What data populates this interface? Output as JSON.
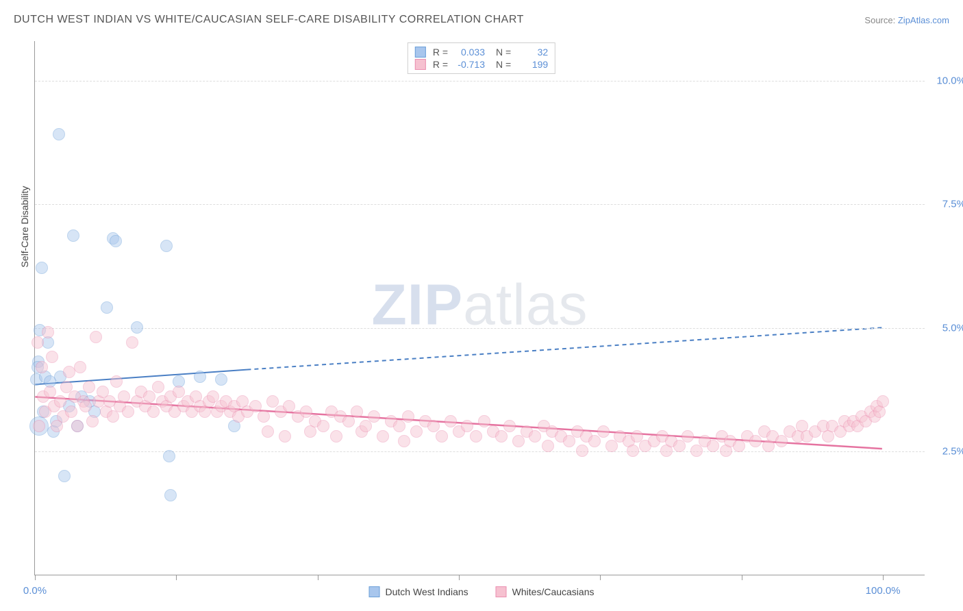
{
  "title": "DUTCH WEST INDIAN VS WHITE/CAUCASIAN SELF-CARE DISABILITY CORRELATION CHART",
  "source_label": "Source:",
  "source_link_text": "ZipAtlas.com",
  "y_axis_title": "Self-Care Disability",
  "watermark": {
    "bold": "ZIP",
    "light": "atlas"
  },
  "chart": {
    "type": "scatter",
    "background_color": "#ffffff",
    "grid_color": "#dddddd",
    "axis_color": "#999999",
    "xlim": [
      0,
      105
    ],
    "ylim": [
      0,
      10.8
    ],
    "x_ticks": [
      0,
      16.67,
      33.33,
      50,
      66.67,
      83.33,
      100
    ],
    "x_tick_labels": {
      "0": "0.0%",
      "100": "100.0%"
    },
    "y_gridlines": [
      2.5,
      5.0,
      7.5,
      10.0
    ],
    "y_tick_labels": [
      "2.5%",
      "5.0%",
      "7.5%",
      "10.0%"
    ],
    "tick_label_color": "#5b8fd6",
    "tick_label_fontsize": 15,
    "point_radius": 9,
    "point_opacity": 0.45,
    "series": [
      {
        "key": "dutch_west_indians",
        "label": "Dutch West Indians",
        "color_fill": "#a8c6ed",
        "color_stroke": "#6b9fd8",
        "R": "0.033",
        "N": "32",
        "trend": {
          "solid": {
            "x1": 0,
            "y1": 3.85,
            "x2": 25,
            "y2": 4.15
          },
          "dashed": {
            "x1": 25,
            "y1": 4.15,
            "x2": 100,
            "y2": 5.0
          },
          "color": "#4a7fc4",
          "width": 2
        },
        "points": [
          {
            "x": 0.2,
            "y": 3.95
          },
          {
            "x": 0.4,
            "y": 4.3
          },
          {
            "x": 0.5,
            "y": 3.0,
            "r": 14
          },
          {
            "x": 0.8,
            "y": 6.2
          },
          {
            "x": 1.0,
            "y": 3.3
          },
          {
            "x": 1.2,
            "y": 4.0
          },
          {
            "x": 1.5,
            "y": 4.7
          },
          {
            "x": 1.8,
            "y": 3.9
          },
          {
            "x": 2.2,
            "y": 2.9
          },
          {
            "x": 2.5,
            "y": 3.1
          },
          {
            "x": 2.8,
            "y": 8.9
          },
          {
            "x": 3.0,
            "y": 4.0
          },
          {
            "x": 3.5,
            "y": 2.0
          },
          {
            "x": 4.0,
            "y": 3.4
          },
          {
            "x": 4.5,
            "y": 6.85
          },
          {
            "x": 5.0,
            "y": 3.0
          },
          {
            "x": 5.5,
            "y": 3.6
          },
          {
            "x": 6.5,
            "y": 3.5
          },
          {
            "x": 7.0,
            "y": 3.3
          },
          {
            "x": 8.5,
            "y": 5.4
          },
          {
            "x": 9.2,
            "y": 6.8
          },
          {
            "x": 9.5,
            "y": 6.75
          },
          {
            "x": 12.0,
            "y": 5.0
          },
          {
            "x": 15.5,
            "y": 6.65
          },
          {
            "x": 15.8,
            "y": 2.4
          },
          {
            "x": 16.0,
            "y": 1.6
          },
          {
            "x": 17.0,
            "y": 3.9
          },
          {
            "x": 19.5,
            "y": 4.0
          },
          {
            "x": 22.0,
            "y": 3.95
          },
          {
            "x": 23.5,
            "y": 3.0
          },
          {
            "x": 0.6,
            "y": 4.95
          },
          {
            "x": 0.3,
            "y": 4.2
          }
        ]
      },
      {
        "key": "whites_caucasians",
        "label": "Whites/Caucasians",
        "color_fill": "#f6c1d0",
        "color_stroke": "#eb8fb0",
        "R": "-0.713",
        "N": "199",
        "trend": {
          "solid": {
            "x1": 0,
            "y1": 3.6,
            "x2": 100,
            "y2": 2.55
          },
          "color": "#e573a0",
          "width": 2.5
        },
        "points": [
          {
            "x": 0.3,
            "y": 4.7
          },
          {
            "x": 0.5,
            "y": 3.0
          },
          {
            "x": 0.8,
            "y": 4.2
          },
          {
            "x": 1.0,
            "y": 3.6
          },
          {
            "x": 1.2,
            "y": 3.3
          },
          {
            "x": 1.5,
            "y": 4.9
          },
          {
            "x": 1.8,
            "y": 3.7
          },
          {
            "x": 2.0,
            "y": 4.4
          },
          {
            "x": 2.3,
            "y": 3.4
          },
          {
            "x": 2.6,
            "y": 3.0
          },
          {
            "x": 3.0,
            "y": 3.5
          },
          {
            "x": 3.3,
            "y": 3.2
          },
          {
            "x": 3.7,
            "y": 3.8
          },
          {
            "x": 4.0,
            "y": 4.1
          },
          {
            "x": 4.3,
            "y": 3.3
          },
          {
            "x": 4.7,
            "y": 3.6
          },
          {
            "x": 5.0,
            "y": 3.0
          },
          {
            "x": 5.3,
            "y": 4.2
          },
          {
            "x": 5.7,
            "y": 3.5
          },
          {
            "x": 6.0,
            "y": 3.4
          },
          {
            "x": 6.4,
            "y": 3.8
          },
          {
            "x": 6.8,
            "y": 3.1
          },
          {
            "x": 7.2,
            "y": 4.8
          },
          {
            "x": 7.5,
            "y": 3.5
          },
          {
            "x": 8.0,
            "y": 3.7
          },
          {
            "x": 8.4,
            "y": 3.3
          },
          {
            "x": 8.8,
            "y": 3.5
          },
          {
            "x": 9.2,
            "y": 3.2
          },
          {
            "x": 9.6,
            "y": 3.9
          },
          {
            "x": 10.0,
            "y": 3.4
          },
          {
            "x": 10.5,
            "y": 3.6
          },
          {
            "x": 11.0,
            "y": 3.3
          },
          {
            "x": 11.5,
            "y": 4.7
          },
          {
            "x": 12.0,
            "y": 3.5
          },
          {
            "x": 12.5,
            "y": 3.7
          },
          {
            "x": 13.0,
            "y": 3.4
          },
          {
            "x": 13.5,
            "y": 3.6
          },
          {
            "x": 14.0,
            "y": 3.3
          },
          {
            "x": 14.5,
            "y": 3.8
          },
          {
            "x": 15.0,
            "y": 3.5
          },
          {
            "x": 15.5,
            "y": 3.4
          },
          {
            "x": 16.0,
            "y": 3.6
          },
          {
            "x": 16.5,
            "y": 3.3
          },
          {
            "x": 17.0,
            "y": 3.7
          },
          {
            "x": 17.5,
            "y": 3.4
          },
          {
            "x": 18.0,
            "y": 3.5
          },
          {
            "x": 18.5,
            "y": 3.3
          },
          {
            "x": 19.0,
            "y": 3.6
          },
          {
            "x": 19.5,
            "y": 3.4
          },
          {
            "x": 20.0,
            "y": 3.3
          },
          {
            "x": 20.5,
            "y": 3.5
          },
          {
            "x": 21.0,
            "y": 3.6
          },
          {
            "x": 21.5,
            "y": 3.3
          },
          {
            "x": 22.0,
            "y": 3.4
          },
          {
            "x": 22.5,
            "y": 3.5
          },
          {
            "x": 23.0,
            "y": 3.3
          },
          {
            "x": 23.5,
            "y": 3.4
          },
          {
            "x": 24.0,
            "y": 3.2
          },
          {
            "x": 24.5,
            "y": 3.5
          },
          {
            "x": 25.0,
            "y": 3.3
          },
          {
            "x": 26.0,
            "y": 3.4
          },
          {
            "x": 27.0,
            "y": 3.2
          },
          {
            "x": 27.5,
            "y": 2.9
          },
          {
            "x": 28.0,
            "y": 3.5
          },
          {
            "x": 29.0,
            "y": 3.3
          },
          {
            "x": 29.5,
            "y": 2.8
          },
          {
            "x": 30.0,
            "y": 3.4
          },
          {
            "x": 31.0,
            "y": 3.2
          },
          {
            "x": 32.0,
            "y": 3.3
          },
          {
            "x": 32.5,
            "y": 2.9
          },
          {
            "x": 33.0,
            "y": 3.1
          },
          {
            "x": 34.0,
            "y": 3.0
          },
          {
            "x": 35.0,
            "y": 3.3
          },
          {
            "x": 35.5,
            "y": 2.8
          },
          {
            "x": 36.0,
            "y": 3.2
          },
          {
            "x": 37.0,
            "y": 3.1
          },
          {
            "x": 38.0,
            "y": 3.3
          },
          {
            "x": 38.5,
            "y": 2.9
          },
          {
            "x": 39.0,
            "y": 3.0
          },
          {
            "x": 40.0,
            "y": 3.2
          },
          {
            "x": 41.0,
            "y": 2.8
          },
          {
            "x": 42.0,
            "y": 3.1
          },
          {
            "x": 43.0,
            "y": 3.0
          },
          {
            "x": 43.5,
            "y": 2.7
          },
          {
            "x": 44.0,
            "y": 3.2
          },
          {
            "x": 45.0,
            "y": 2.9
          },
          {
            "x": 46.0,
            "y": 3.1
          },
          {
            "x": 47.0,
            "y": 3.0
          },
          {
            "x": 48.0,
            "y": 2.8
          },
          {
            "x": 49.0,
            "y": 3.1
          },
          {
            "x": 50.0,
            "y": 2.9
          },
          {
            "x": 51.0,
            "y": 3.0
          },
          {
            "x": 52.0,
            "y": 2.8
          },
          {
            "x": 53.0,
            "y": 3.1
          },
          {
            "x": 54.0,
            "y": 2.9
          },
          {
            "x": 55.0,
            "y": 2.8
          },
          {
            "x": 56.0,
            "y": 3.0
          },
          {
            "x": 57.0,
            "y": 2.7
          },
          {
            "x": 58.0,
            "y": 2.9
          },
          {
            "x": 59.0,
            "y": 2.8
          },
          {
            "x": 60.0,
            "y": 3.0
          },
          {
            "x": 60.5,
            "y": 2.6
          },
          {
            "x": 61.0,
            "y": 2.9
          },
          {
            "x": 62.0,
            "y": 2.8
          },
          {
            "x": 63.0,
            "y": 2.7
          },
          {
            "x": 64.0,
            "y": 2.9
          },
          {
            "x": 64.5,
            "y": 2.5
          },
          {
            "x": 65.0,
            "y": 2.8
          },
          {
            "x": 66.0,
            "y": 2.7
          },
          {
            "x": 67.0,
            "y": 2.9
          },
          {
            "x": 68.0,
            "y": 2.6
          },
          {
            "x": 69.0,
            "y": 2.8
          },
          {
            "x": 70.0,
            "y": 2.7
          },
          {
            "x": 70.5,
            "y": 2.5
          },
          {
            "x": 71.0,
            "y": 2.8
          },
          {
            "x": 72.0,
            "y": 2.6
          },
          {
            "x": 73.0,
            "y": 2.7
          },
          {
            "x": 74.0,
            "y": 2.8
          },
          {
            "x": 74.5,
            "y": 2.5
          },
          {
            "x": 75.0,
            "y": 2.7
          },
          {
            "x": 76.0,
            "y": 2.6
          },
          {
            "x": 77.0,
            "y": 2.8
          },
          {
            "x": 78.0,
            "y": 2.5
          },
          {
            "x": 79.0,
            "y": 2.7
          },
          {
            "x": 80.0,
            "y": 2.6
          },
          {
            "x": 81.0,
            "y": 2.8
          },
          {
            "x": 81.5,
            "y": 2.5
          },
          {
            "x": 82.0,
            "y": 2.7
          },
          {
            "x": 83.0,
            "y": 2.6
          },
          {
            "x": 84.0,
            "y": 2.8
          },
          {
            "x": 85.0,
            "y": 2.7
          },
          {
            "x": 86.0,
            "y": 2.9
          },
          {
            "x": 86.5,
            "y": 2.6
          },
          {
            "x": 87.0,
            "y": 2.8
          },
          {
            "x": 88.0,
            "y": 2.7
          },
          {
            "x": 89.0,
            "y": 2.9
          },
          {
            "x": 90.0,
            "y": 2.8
          },
          {
            "x": 90.5,
            "y": 3.0
          },
          {
            "x": 91.0,
            "y": 2.8
          },
          {
            "x": 92.0,
            "y": 2.9
          },
          {
            "x": 93.0,
            "y": 3.0
          },
          {
            "x": 93.5,
            "y": 2.8
          },
          {
            "x": 94.0,
            "y": 3.0
          },
          {
            "x": 95.0,
            "y": 2.9
          },
          {
            "x": 95.5,
            "y": 3.1
          },
          {
            "x": 96.0,
            "y": 3.0
          },
          {
            "x": 96.5,
            "y": 3.1
          },
          {
            "x": 97.0,
            "y": 3.0
          },
          {
            "x": 97.5,
            "y": 3.2
          },
          {
            "x": 98.0,
            "y": 3.1
          },
          {
            "x": 98.5,
            "y": 3.3
          },
          {
            "x": 99.0,
            "y": 3.2
          },
          {
            "x": 99.3,
            "y": 3.4
          },
          {
            "x": 99.6,
            "y": 3.3
          },
          {
            "x": 100.0,
            "y": 3.5
          }
        ]
      }
    ]
  },
  "legend_top": {
    "R_label": "R =",
    "N_label": "N ="
  }
}
